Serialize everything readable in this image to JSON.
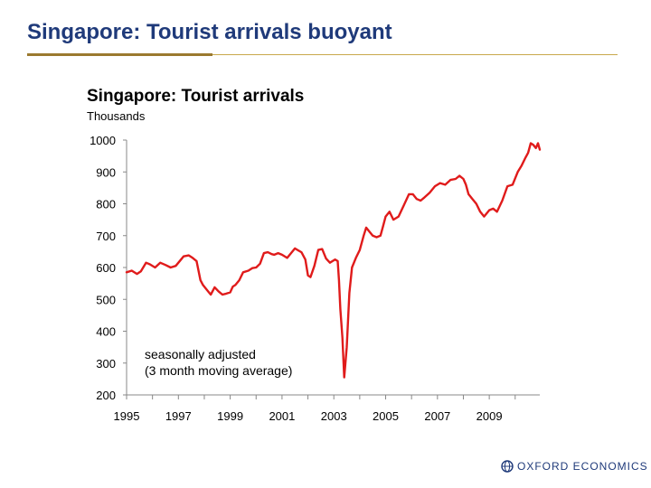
{
  "slide": {
    "title": "Singapore: Tourist arrivals buoyant"
  },
  "colors": {
    "title": "#1f3a7a",
    "rule_dark": "#9b7a2f",
    "rule_light": "#c8a84b",
    "series": "#e01b1b",
    "axis": "#888888",
    "logo": "#1f3a7a"
  },
  "chart_data": {
    "type": "line",
    "title": "Singapore: Tourist arrivals",
    "ylabel": "Thousands",
    "xlabel": "",
    "ylim": [
      200,
      1000
    ],
    "xlim": [
      1995,
      2010.95
    ],
    "yticks": [
      200,
      300,
      400,
      500,
      600,
      700,
      800,
      900,
      1000
    ],
    "xticks": [
      1995,
      1997,
      1999,
      2001,
      2003,
      2005,
      2007,
      2009
    ],
    "minor_xticks": [
      1996,
      1998,
      2000,
      2002,
      2004,
      2006,
      2008,
      2010
    ],
    "annotation": [
      "seasonally adjusted",
      "(3 month moving average)"
    ],
    "grid": false,
    "series": [
      {
        "name": "Tourist arrivals",
        "x": [
          1995.0,
          1995.2,
          1995.4,
          1995.55,
          1995.75,
          1995.9,
          1996.1,
          1996.3,
          1996.5,
          1996.7,
          1996.9,
          1997.1,
          1997.2,
          1997.4,
          1997.55,
          1997.7,
          1997.85,
          1997.95,
          1998.1,
          1998.25,
          1998.4,
          1998.55,
          1998.7,
          1998.85,
          1999.0,
          1999.1,
          1999.2,
          1999.35,
          1999.5,
          1999.7,
          1999.85,
          2000.0,
          2000.15,
          2000.3,
          2000.45,
          2000.6,
          2000.7,
          2000.85,
          2001.0,
          2001.2,
          2001.35,
          2001.5,
          2001.6,
          2001.75,
          2001.9,
          2002.0,
          2002.1,
          2002.25,
          2002.4,
          2002.55,
          2002.7,
          2002.85,
          2002.95,
          2003.05,
          2003.15,
          2003.2,
          2003.25,
          2003.33,
          2003.4,
          2003.5,
          2003.6,
          2003.7,
          2003.85,
          2004.0,
          2004.15,
          2004.25,
          2004.35,
          2004.5,
          2004.65,
          2004.8,
          2004.9,
          2005.0,
          2005.15,
          2005.3,
          2005.5,
          2005.7,
          2005.9,
          2006.05,
          2006.2,
          2006.35,
          2006.5,
          2006.7,
          2006.9,
          2007.1,
          2007.3,
          2007.5,
          2007.7,
          2007.85,
          2008.0,
          2008.1,
          2008.2,
          2008.35,
          2008.5,
          2008.65,
          2008.8,
          2009.0,
          2009.15,
          2009.3,
          2009.5,
          2009.7,
          2009.9,
          2010.1,
          2010.25,
          2010.4,
          2010.5,
          2010.6,
          2010.7,
          2010.8,
          2010.88,
          2010.95
        ],
        "values": [
          585,
          590,
          580,
          588,
          615,
          610,
          600,
          615,
          608,
          600,
          605,
          625,
          635,
          638,
          630,
          620,
          560,
          545,
          530,
          515,
          538,
          525,
          515,
          518,
          522,
          540,
          545,
          560,
          585,
          590,
          598,
          600,
          612,
          645,
          648,
          642,
          640,
          645,
          640,
          630,
          645,
          660,
          655,
          648,
          625,
          575,
          570,
          605,
          655,
          658,
          628,
          615,
          620,
          625,
          620,
          560,
          470,
          380,
          255,
          350,
          520,
          600,
          630,
          655,
          700,
          725,
          715,
          700,
          695,
          700,
          730,
          760,
          775,
          750,
          760,
          795,
          830,
          830,
          815,
          810,
          820,
          835,
          855,
          865,
          860,
          875,
          878,
          888,
          878,
          860,
          830,
          815,
          800,
          775,
          760,
          780,
          785,
          775,
          810,
          855,
          860,
          900,
          920,
          945,
          960,
          990,
          985,
          975,
          990,
          970
        ]
      }
    ]
  },
  "logo": {
    "text": "OXFORD ECONOMICS"
  }
}
